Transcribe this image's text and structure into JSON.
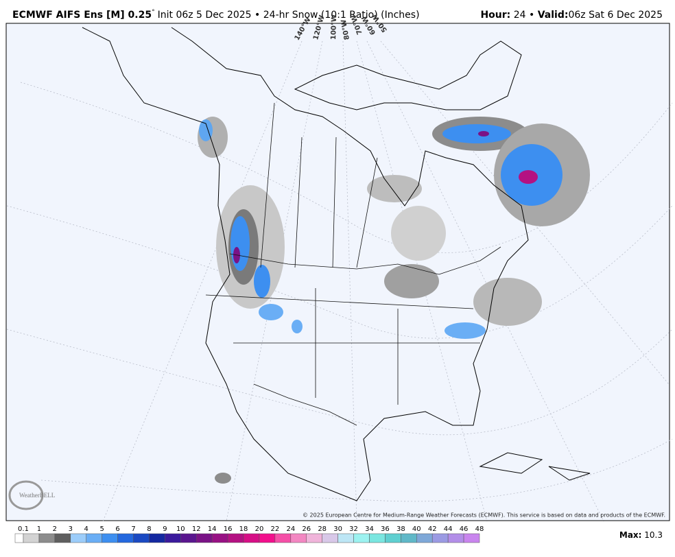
{
  "header": {
    "model": "ECMWF AIFS Ens [M] 0.25",
    "degree": "°",
    "init": "Init 06z 5 Dec 2025",
    "bullet": "•",
    "product": "24-hr Snow (10:1 Ratio) (Inches)",
    "hour_label": "Hour:",
    "hour": "24",
    "valid_label": "Valid:",
    "valid": "06z Sat 6 Dec 2025"
  },
  "map": {
    "longitudes": [
      "140°W",
      "120°W",
      "100°W",
      "80°W",
      "70°W",
      "60°W",
      "50°W"
    ],
    "copyright": "© 2025 European Centre for Medium-Range Weather Forecasts (ECMWF). This service is based on data and products of the ECMWF.",
    "logo": "WeatherBELL"
  },
  "legend": {
    "ticks": [
      0.1,
      1,
      2,
      3,
      4,
      5,
      6,
      7,
      8,
      9,
      10,
      12,
      14,
      16,
      18,
      20,
      22,
      24,
      26,
      28,
      30,
      32,
      34,
      36,
      38,
      40,
      42,
      44,
      46,
      48
    ],
    "colors": [
      "#ffffff",
      "#d3d3d3",
      "#8c8c8c",
      "#5f5f5f",
      "#9ccdfa",
      "#6aaef5",
      "#3d8ff0",
      "#2468de",
      "#1b49c2",
      "#1428a0",
      "#3a1a9c",
      "#5a168e",
      "#7a1386",
      "#981184",
      "#b41182",
      "#d60f86",
      "#f20f8c",
      "#f54fa7",
      "#f387c2",
      "#f0b4da",
      "#d8c8e8",
      "#bde6f5",
      "#9cf2f0",
      "#7ae6e0",
      "#5fcfd0",
      "#60b8c8",
      "#7fa8d8",
      "#9b9ae3",
      "#b38ee8",
      "#c985ee"
    ],
    "max_label": "Max:",
    "max": 10.3
  }
}
